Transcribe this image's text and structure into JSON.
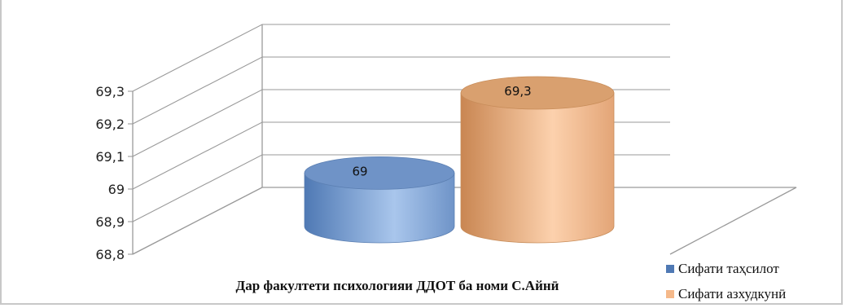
{
  "chart_data": {
    "type": "bar",
    "style": "3d-cylinder",
    "categories": [
      "Дар факултети психологияи ДДОТ ба номи С.Айнӣ"
    ],
    "series": [
      {
        "name": "Сифати таҳсилот",
        "values": [
          69
        ],
        "color": "#7fa5d6"
      },
      {
        "name": "Сифати азхудкунӣ",
        "values": [
          69.3
        ],
        "color": "#f5b98a"
      }
    ],
    "data_labels": [
      "69",
      "69,3"
    ],
    "y_ticks": [
      "68,8",
      "68,9",
      "69",
      "69,1",
      "69,2",
      "69,3"
    ],
    "ylim": [
      68.8,
      69.3
    ],
    "grid": true,
    "legend_position": "bottom-right"
  }
}
